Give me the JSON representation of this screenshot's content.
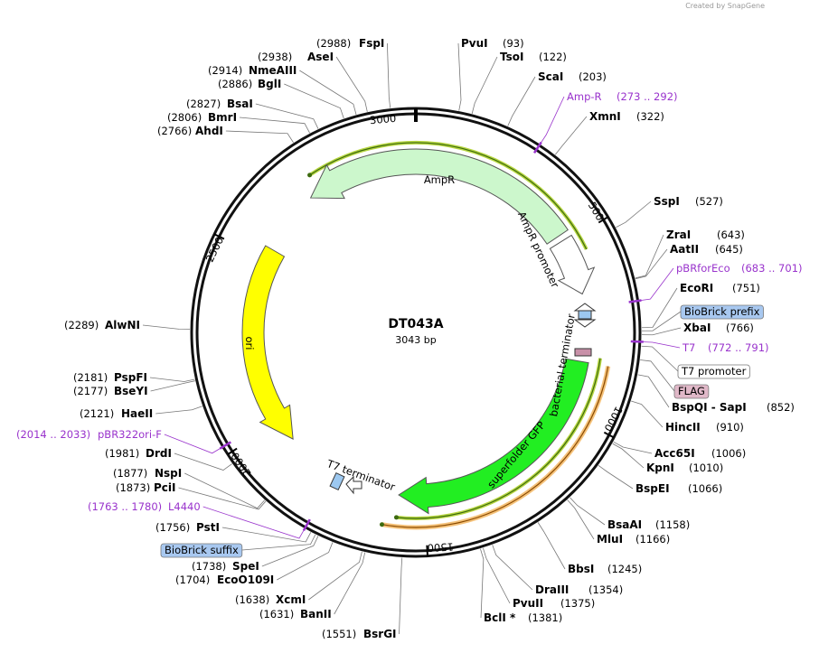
{
  "header": {
    "credit": "Created by SnapGene"
  },
  "map": {
    "name": "DT043A",
    "length": "3043 bp",
    "ring_labels": [
      "3000",
      "500",
      "1000",
      "1500",
      "2000",
      "2500"
    ],
    "features": [
      {
        "label": "AmpR"
      },
      {
        "label": "AmpR promoter"
      },
      {
        "label": "ori"
      },
      {
        "label": "T7 terminator"
      },
      {
        "label": "bacterial terminator"
      },
      {
        "label": "superfolder GFP"
      }
    ],
    "sites": [
      {
        "name": "PvuI",
        "position": "(93)"
      },
      {
        "name": "TsoI",
        "position": "(122)"
      },
      {
        "name": "ScaI",
        "position": "(203)"
      },
      {
        "name": "XmnI",
        "position": "(322)"
      },
      {
        "name": "SspI",
        "position": "(527)"
      },
      {
        "name": "ZraI",
        "position": "(643)"
      },
      {
        "name": "AatII",
        "position": "(645)"
      },
      {
        "name": "EcoRI",
        "position": "(751)"
      },
      {
        "name": "XbaI",
        "position": "(766)"
      },
      {
        "name": "BspQI - SapI",
        "position": "(852)"
      },
      {
        "name": "HincII",
        "position": "(910)"
      },
      {
        "name": "Acc65I",
        "position": "(1006)"
      },
      {
        "name": "KpnI",
        "position": "(1010)"
      },
      {
        "name": "BspEI",
        "position": "(1066)"
      },
      {
        "name": "BsaAI",
        "position": "(1158)"
      },
      {
        "name": "MluI",
        "position": "(1166)"
      },
      {
        "name": "BbsI",
        "position": "(1245)"
      },
      {
        "name": "DraIII",
        "position": "(1354)"
      },
      {
        "name": "PvuII",
        "position": "(1375)"
      },
      {
        "name": "BclI *",
        "position": "(1381)"
      },
      {
        "name": "BsrGI",
        "position": "(1551)"
      },
      {
        "name": "BanII",
        "position": "(1631)"
      },
      {
        "name": "XcmI",
        "position": "(1638)"
      },
      {
        "name": "EcoO109I",
        "position": "(1704)"
      },
      {
        "name": "SpeI",
        "position": "(1738)"
      },
      {
        "name": "PstI",
        "position": "(1756)"
      },
      {
        "name": "PciI",
        "position": "(1873)"
      },
      {
        "name": "NspI",
        "position": "(1877)"
      },
      {
        "name": "DrdI",
        "position": "(1981)"
      },
      {
        "name": "HaeII",
        "position": "(2121)"
      },
      {
        "name": "BseYI",
        "position": "(2177)"
      },
      {
        "name": "PspFI",
        "position": "(2181)"
      },
      {
        "name": "AlwNI",
        "position": "(2289)"
      },
      {
        "name": "AhdI",
        "position": "(2766)"
      },
      {
        "name": "BmrI",
        "position": "(2806)"
      },
      {
        "name": "BsaI",
        "position": "(2827)"
      },
      {
        "name": "BglI",
        "position": "(2886)"
      },
      {
        "name": "NmeAIII",
        "position": "(2914)"
      },
      {
        "name": "AseI",
        "position": "(2938)"
      },
      {
        "name": "FspI",
        "position": "(2988)"
      }
    ],
    "primers": [
      {
        "name": "Amp-R",
        "range": "(273 .. 292)"
      },
      {
        "name": "pBRforEco",
        "range": "(683 .. 701)"
      },
      {
        "name": "T7",
        "range": "(772 .. 791)"
      },
      {
        "name": "pBR322ori-F",
        "range": "(2014 .. 2033)"
      },
      {
        "name": "L4440",
        "range": "(1763 .. 1780)"
      }
    ],
    "annotations": [
      "BioBrick prefix",
      "T7 promoter",
      "FLAG",
      "BioBrick suffix"
    ]
  }
}
